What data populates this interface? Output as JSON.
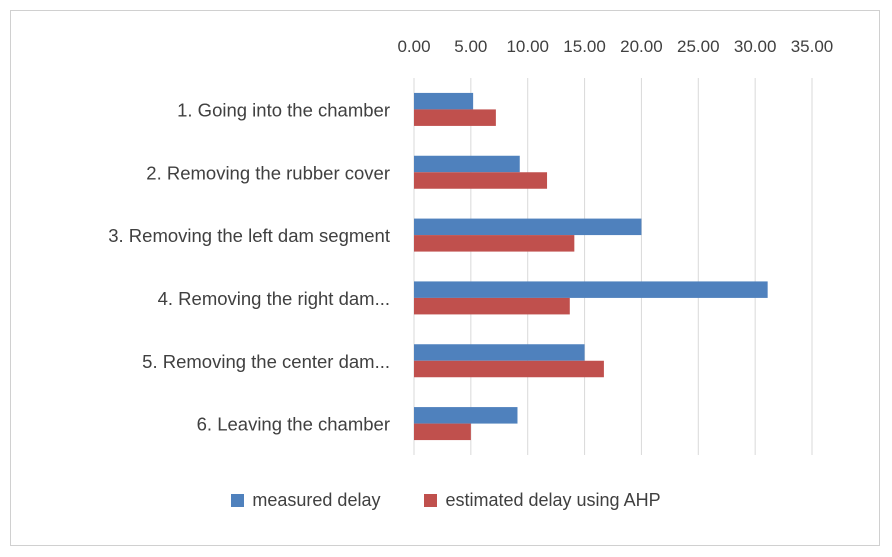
{
  "chart_data": {
    "type": "bar",
    "orientation": "horizontal",
    "title": "",
    "categories": [
      "1. Going into the chamber",
      "2. Removing the rubber cover",
      "3. Removing the left dam segment",
      "4. Removing the right dam...",
      "5. Removing the center dam...",
      "6. Leaving the chamber"
    ],
    "series": [
      {
        "name": "measured delay",
        "color": "#4f81bd",
        "values": [
          5.2,
          9.3,
          20.0,
          31.1,
          15.0,
          9.1
        ]
      },
      {
        "name": "estimated delay using AHP",
        "color": "#c0504d",
        "values": [
          7.2,
          11.7,
          14.1,
          13.7,
          16.7,
          5.0
        ]
      }
    ],
    "x_ticks": [
      "0.00",
      "5.00",
      "10.00",
      "15.00",
      "20.00",
      "25.00",
      "30.00",
      "35.00"
    ],
    "xlim": [
      0,
      35
    ],
    "x_axis_position": "top",
    "grid": true,
    "legend_position": "bottom"
  }
}
